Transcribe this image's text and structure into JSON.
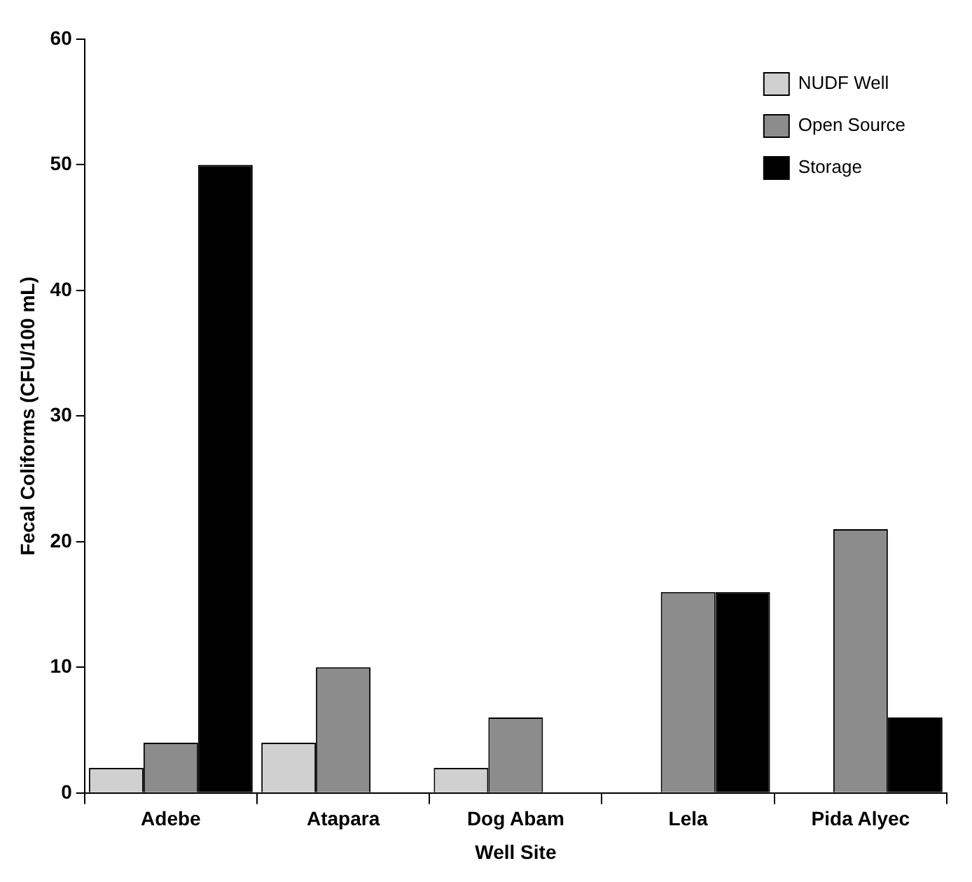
{
  "chart_data": {
    "type": "bar",
    "xlabel": "Well Site",
    "ylabel": "Fecal Coliforms (CFU/100 mL)",
    "categories": [
      "Adebe",
      "Atapara",
      "Dog Abam",
      "Lela",
      "Pida Alyec"
    ],
    "series": [
      {
        "name": "NUDF Well",
        "color": "#d0d0d0",
        "values": [
          2,
          4,
          2,
          null,
          null
        ]
      },
      {
        "name": "Open Source",
        "color": "#8c8c8c",
        "values": [
          4,
          10,
          6,
          16,
          21
        ]
      },
      {
        "name": "Storage",
        "color": "#000000",
        "values": [
          50,
          null,
          null,
          16,
          6
        ]
      }
    ],
    "ylim": [
      0,
      60
    ],
    "yticks": [
      0,
      10,
      20,
      30,
      40,
      50,
      60
    ],
    "grid": false,
    "legend": "top right"
  }
}
